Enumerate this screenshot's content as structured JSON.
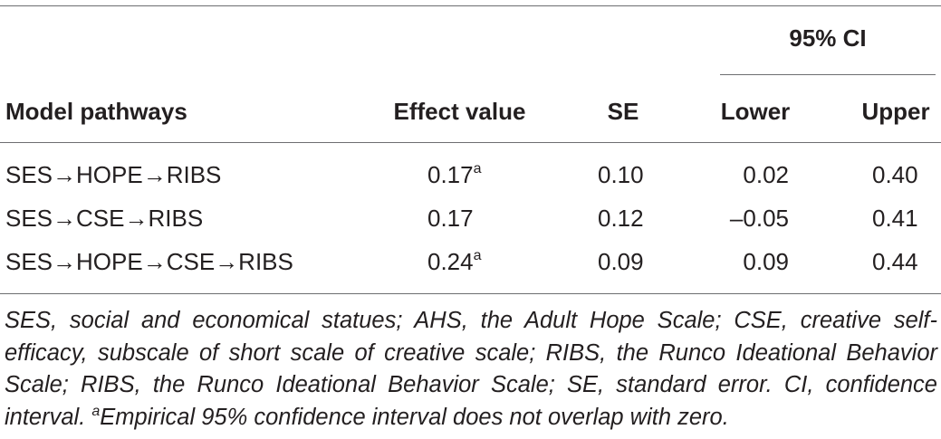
{
  "table": {
    "ci_header": "95% CI",
    "columns": [
      "Model pathways",
      "Effect value",
      "SE",
      "Lower",
      "Upper"
    ],
    "rows": [
      {
        "pathway": "SES→HOPE→RIBS",
        "effect": "0.17",
        "effect_sup": "a",
        "se": "0.10",
        "lower": "0.02",
        "upper": "0.40"
      },
      {
        "pathway": "SES→CSE→RIBS",
        "effect": "0.17",
        "effect_sup": "",
        "se": "0.12",
        "lower": "–0.05",
        "upper": "0.41"
      },
      {
        "pathway": "SES→HOPE→CSE→RIBS",
        "effect": "0.24",
        "effect_sup": "a",
        "se": "0.09",
        "lower": "0.09",
        "upper": "0.44"
      }
    ]
  },
  "footnote": {
    "text": "SES, social and economical statues; AHS, the Adult Hope Scale; CSE, creative self-efficacy, subscale of short scale of creative scale; RIBS, the Runco Ideational Behavior Scale; RIBS, the Runco Ideational Behavior Scale; SE, standard error. CI, confidence interval. ",
    "sup": "a",
    "tail": "Empirical 95% confidence interval does not overlap with zero."
  }
}
